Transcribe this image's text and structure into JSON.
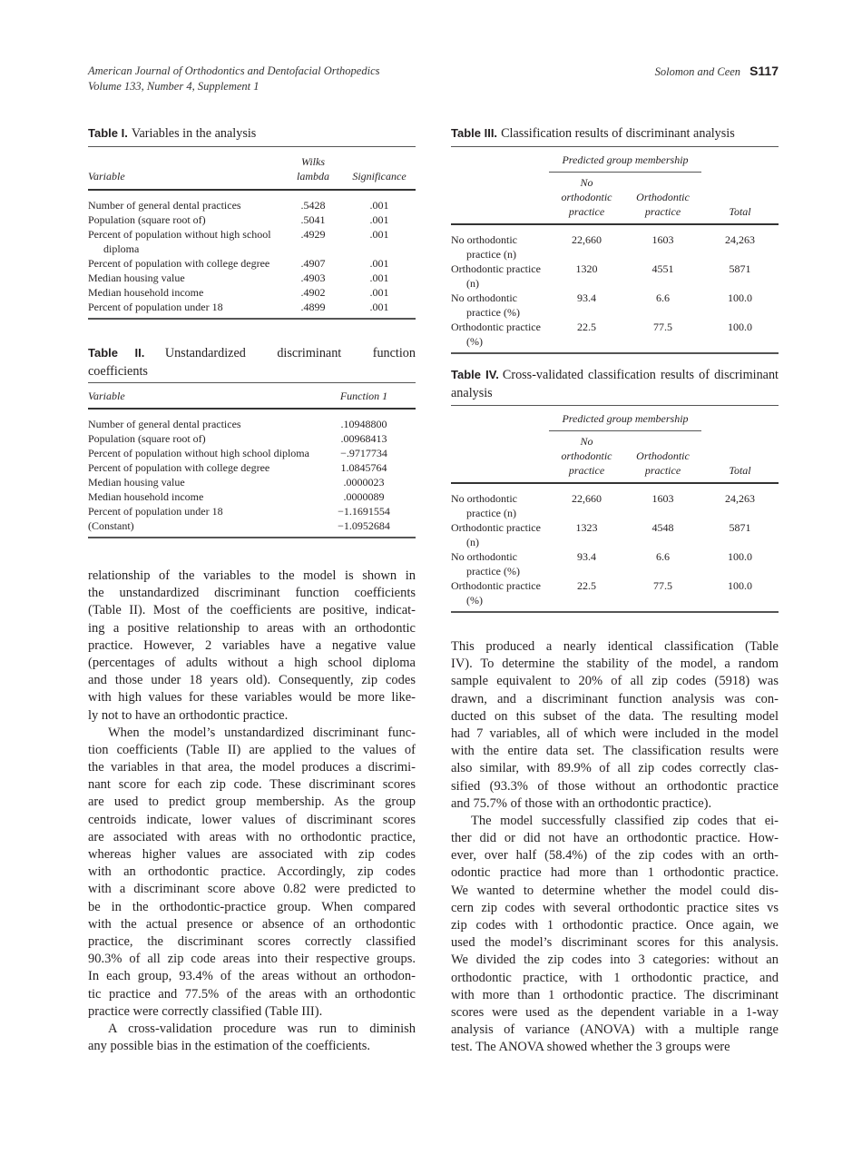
{
  "header": {
    "journal": "American Journal of Orthodontics and Dentofacial Orthopedics",
    "volume": "Volume 133, Number 4, Supplement 1",
    "authors": "Solomon and Ceen",
    "page": "S117"
  },
  "table1": {
    "label": "Table I.",
    "title": "Variables in the analysis",
    "headers": {
      "variable": "Variable",
      "wilks1": "Wilks",
      "wilks2": "lambda",
      "sig": "Significance"
    },
    "rows": [
      {
        "variable": "Number of general dental practices",
        "wilks": ".5428",
        "sig": ".001"
      },
      {
        "variable": "Population (square root of)",
        "wilks": ".5041",
        "sig": ".001"
      },
      {
        "variable": "Percent of population without high school diploma",
        "wilks": ".4929",
        "sig": ".001"
      },
      {
        "variable": "Percent of population with college degree",
        "wilks": ".4907",
        "sig": ".001"
      },
      {
        "variable": "Median housing value",
        "wilks": ".4903",
        "sig": ".001"
      },
      {
        "variable": "Median household income",
        "wilks": ".4902",
        "sig": ".001"
      },
      {
        "variable": "Percent of population under 18",
        "wilks": ".4899",
        "sig": ".001"
      }
    ]
  },
  "table2": {
    "label": "Table II.",
    "title": "Unstandardized discriminant function coefficients",
    "headers": {
      "variable": "Variable",
      "fn": "Function 1"
    },
    "rows": [
      {
        "variable": "Number of general dental practices",
        "value": ".10948800"
      },
      {
        "variable": "Population (square root of)",
        "value": ".00968413"
      },
      {
        "variable": "Percent of population without high school diploma",
        "value": "−.9717734"
      },
      {
        "variable": "Percent of population with college degree",
        "value": "1.0845764"
      },
      {
        "variable": "Median housing value",
        "value": ".0000023"
      },
      {
        "variable": "Median household income",
        "value": ".0000089"
      },
      {
        "variable": "Percent of population under 18",
        "value": "−1.1691554"
      },
      {
        "variable": "(Constant)",
        "value": "−1.0952684"
      }
    ]
  },
  "table3": {
    "label": "Table III.",
    "title": "Classification results of discriminant analysis",
    "group": "Predicted group membership",
    "headers": {
      "no1": "No",
      "no2": "orthodontic",
      "no3": "practice",
      "o1": "Orthodontic",
      "o2": "practice",
      "total": "Total"
    },
    "rows": [
      {
        "label": "No orthodontic practice (n)",
        "no": "22,660",
        "ortho": "1603",
        "total": "24,263"
      },
      {
        "label": "Orthodontic practice (n)",
        "no": "1320",
        "ortho": "4551",
        "total": "5871"
      },
      {
        "label": "No orthodontic practice (%)",
        "no": "93.4",
        "ortho": "6.6",
        "total": "100.0"
      },
      {
        "label": "Orthodontic practice (%)",
        "no": "22.5",
        "ortho": "77.5",
        "total": "100.0"
      }
    ]
  },
  "table4": {
    "label": "Table IV.",
    "title": "Cross-validated classification results of discriminant analysis",
    "group": "Predicted group membership",
    "headers": {
      "no1": "No",
      "no2": "orthodontic",
      "no3": "practice",
      "o1": "Orthodontic",
      "o2": "practice",
      "total": "Total"
    },
    "rows": [
      {
        "label": "No orthodontic practice (n)",
        "no": "22,660",
        "ortho": "1603",
        "total": "24,263"
      },
      {
        "label": "Orthodontic practice (n)",
        "no": "1323",
        "ortho": "4548",
        "total": "5871"
      },
      {
        "label": "No orthodontic practice (%)",
        "no": "93.4",
        "ortho": "6.6",
        "total": "100.0"
      },
      {
        "label": "Orthodontic practice (%)",
        "no": "22.5",
        "ortho": "77.5",
        "total": "100.0"
      }
    ]
  },
  "left_text": [
    {
      "indent": false,
      "lines": [
        "relationship of the variables to the model is shown in",
        "the unstandardized discriminant function coefficients",
        "(Table II). Most of the coefficients are positive, indicat-",
        "ing a positive relationship to areas with an orthodontic",
        "practice. However, 2 variables have a negative value",
        "(percentages of adults without a high school diploma",
        "and those under 18 years old). Consequently, zip codes",
        "with high values for these variables would be more like-",
        "ly not to have an orthodontic practice."
      ]
    },
    {
      "indent": true,
      "lines": [
        "When the model’s unstandardized discriminant func-",
        "tion coefficients (Table II) are applied to the values of",
        "the variables in that area, the model produces a discrimi-",
        "nant score for each zip code. These discriminant scores",
        "are used to predict group membership. As the group",
        "centroids indicate, lower values of discriminant scores",
        "are associated with areas with no orthodontic practice,",
        "whereas higher values are associated with zip codes",
        "with an orthodontic practice. Accordingly, zip codes",
        "with a discriminant score above 0.82 were predicted to",
        "be in the orthodontic-practice group. When compared",
        "with the actual presence or absence of an orthodontic",
        "practice, the discriminant scores correctly classified",
        "90.3% of all zip code areas into their respective groups.",
        "In each group, 93.4% of the areas without an orthodon-",
        "tic practice and 77.5% of the areas with an orthodontic",
        "practice were correctly classified (Table III)."
      ]
    },
    {
      "indent": true,
      "cont": true,
      "lines": [
        "A cross-validation procedure was run to diminish",
        "any possible bias in the estimation of the coefficients."
      ]
    }
  ],
  "right_text": [
    {
      "indent": false,
      "lines": [
        "This produced a nearly identical classification (Table",
        "IV). To determine the stability of the model, a random",
        "sample equivalent to 20% of all zip codes (5918) was",
        "drawn, and a discriminant function analysis was con-",
        "ducted on this subset of the data. The resulting model",
        "had 7 variables, all of which were included in the model",
        "with the entire data set. The classification results were",
        "also similar, with 89.9% of all zip codes correctly clas-",
        "sified (93.3% of those without an orthodontic practice",
        "and 75.7% of those with an orthodontic practice)."
      ]
    },
    {
      "indent": true,
      "cont": true,
      "lines": [
        "The model successfully classified zip codes that ei-",
        "ther did or did not have an orthodontic practice. How-",
        "ever, over half (58.4%) of the zip codes with an orth-",
        "odontic practice had more than 1 orthodontic practice.",
        "We wanted to determine whether the model could dis-",
        "cern zip codes with several orthodontic practice sites vs",
        "zip codes with 1 orthodontic practice. Once again, we",
        "used the model’s discriminant scores for this analysis.",
        "We divided the zip codes into 3 categories: without an",
        "orthodontic practice, with 1 orthodontic practice, and",
        "with more than 1 orthodontic practice. The discriminant",
        "scores were used as the dependent variable in a 1-way",
        "analysis of variance (ANOVA) with a multiple range",
        "test. The ANOVA showed whether the 3 groups were"
      ]
    }
  ]
}
